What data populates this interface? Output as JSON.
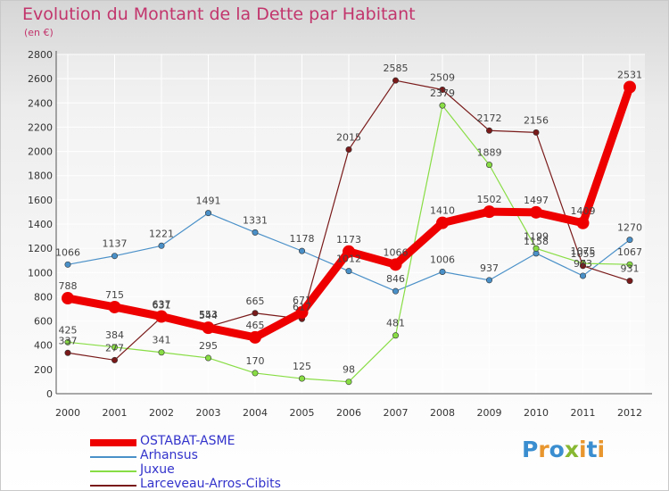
{
  "chart_data": {
    "type": "line",
    "title": "Evolution du Montant de la Dette par Habitant",
    "subtitle": "(en €)",
    "x": [
      "2000",
      "2001",
      "2002",
      "2003",
      "2004",
      "2005",
      "2006",
      "2007",
      "2008",
      "2009",
      "2010",
      "2011",
      "2012"
    ],
    "yticks": [
      "0",
      "200",
      "400",
      "600",
      "800",
      "1000",
      "1200",
      "1400",
      "1600",
      "1800",
      "2000",
      "2200",
      "2400",
      "2600",
      "2800"
    ],
    "ylim": [
      0,
      2800
    ],
    "grid": true,
    "legend_position": "bottom-left",
    "series": [
      {
        "name": "OSTABAT-ASME",
        "color": "#ee0000",
        "values": [
          788,
          715,
          637,
          544,
          465,
          671,
          1173,
          1066,
          1410,
          1502,
          1497,
          1409,
          2531
        ],
        "labels": [
          "788",
          "715",
          "637",
          "544",
          "465",
          "671",
          "1173",
          "1066",
          "1410",
          "1502",
          "1497",
          "1409",
          "2531"
        ]
      },
      {
        "name": "Arhansus",
        "color": "#4a90c8",
        "values": [
          1066,
          1137,
          1221,
          1491,
          1331,
          1178,
          1012,
          846,
          1006,
          937,
          1158,
          973,
          1270
        ],
        "labels": [
          "1066",
          "1137",
          "1221",
          "1491",
          "1331",
          "1178",
          "1012",
          "846",
          "1006",
          "937",
          "1158",
          "973",
          "1270"
        ]
      },
      {
        "name": "Juxue",
        "color": "#88dd44",
        "values": [
          425,
          384,
          341,
          295,
          170,
          125,
          98,
          481,
          2379,
          1889,
          1199,
          1075,
          1067
        ],
        "labels": [
          "425",
          "384",
          "341",
          "295",
          "170",
          "125",
          "98",
          "481",
          "2379",
          "1889",
          "1199",
          "1075",
          "1067"
        ]
      },
      {
        "name": "Larceveau-Arros-Cibits",
        "color": "#7a1a1a",
        "values": [
          337,
          277,
          631,
          553,
          665,
          617,
          2015,
          2585,
          2509,
          2172,
          2156,
          1055,
          931
        ],
        "labels": [
          "337",
          "277",
          "631",
          "553",
          "665",
          "617",
          "2015",
          "2585",
          "2509",
          "2172",
          "2156",
          "1055",
          "931"
        ]
      }
    ]
  },
  "brand": {
    "letters": [
      "P",
      "r",
      "o",
      "x",
      "i",
      "t",
      "i"
    ],
    "colors": [
      "#3a8ed0",
      "#e8962e",
      "#3a8ed0",
      "#88b832",
      "#e8962e",
      "#3a8ed0",
      "#e8962e"
    ]
  }
}
